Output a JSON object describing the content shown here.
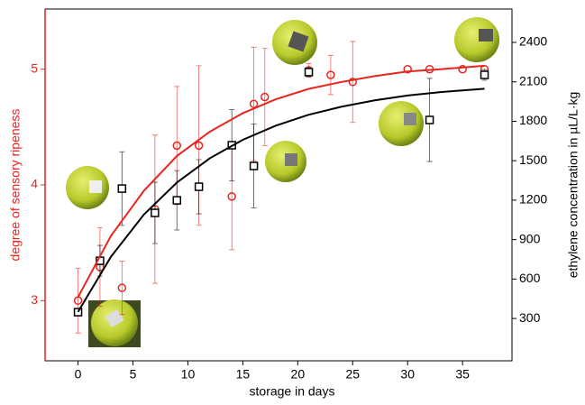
{
  "chart_data": {
    "type": "scatter",
    "xlabel": "storage in days",
    "ylabel": "degree of sensory ripeness",
    "y2label": "ethylene concentration in µL/L·kg",
    "xlim": [
      -3,
      39.5
    ],
    "xticks": [
      0,
      5,
      10,
      15,
      20,
      25,
      30,
      35
    ],
    "ylim": [
      2.48,
      5.52
    ],
    "yticks": [
      3,
      4,
      5
    ],
    "y2lim": [
      -22,
      2654
    ],
    "y2ticks": [
      300,
      600,
      900,
      1200,
      1500,
      1800,
      2100,
      2400
    ],
    "ycolor": "#e8251f",
    "series": [
      {
        "type": "scatter",
        "marker": "circle",
        "color": "#e8251f",
        "x": [
          0,
          2,
          4,
          7,
          9,
          11,
          14,
          16,
          17,
          21,
          23,
          25,
          30,
          32,
          35,
          37
        ],
        "values": [
          3.0,
          3.29,
          3.11,
          3.79,
          4.34,
          4.34,
          3.9,
          4.7,
          4.76,
          4.99,
          4.95,
          4.89,
          5.0,
          5.0,
          5.0,
          5.0
        ],
        "errors": [
          0.28,
          0.34,
          0.23,
          0.64,
          0.51,
          0.69,
          0.46,
          0.49,
          0.42,
          0.06,
          0.17,
          0.35,
          null,
          null,
          null,
          null
        ]
      },
      {
        "type": "scatter",
        "marker": "square",
        "color": "#000000",
        "axis": "y2",
        "x": [
          0,
          2,
          4,
          7,
          9,
          11,
          14,
          16,
          21,
          32,
          37
        ],
        "values": [
          348,
          739,
          1288,
          1103,
          1199,
          1302,
          1618,
          1460,
          2174,
          1810,
          2153
        ],
        "errors": [
          null,
          117,
          280,
          233,
          226,
          206,
          271,
          319,
          34,
          316,
          41
        ]
      },
      {
        "type": "line",
        "color": "#e8251f",
        "x": [
          0,
          3,
          6,
          9,
          12,
          15,
          18,
          21,
          24,
          27,
          30,
          33,
          37
        ],
        "values": [
          3.03,
          3.56,
          3.95,
          4.25,
          4.46,
          4.62,
          4.74,
          4.83,
          4.89,
          4.94,
          4.98,
          5.0,
          5.03
        ]
      },
      {
        "type": "line",
        "color": "#000000",
        "axis": "y2",
        "x": [
          0,
          3,
          6,
          9,
          12,
          15,
          18,
          21,
          24,
          27,
          30,
          33,
          37
        ],
        "values": [
          350,
          770,
          1091,
          1334,
          1519,
          1659,
          1767,
          1850,
          1911,
          1959,
          1996,
          2022,
          2048
        ]
      }
    ]
  }
}
